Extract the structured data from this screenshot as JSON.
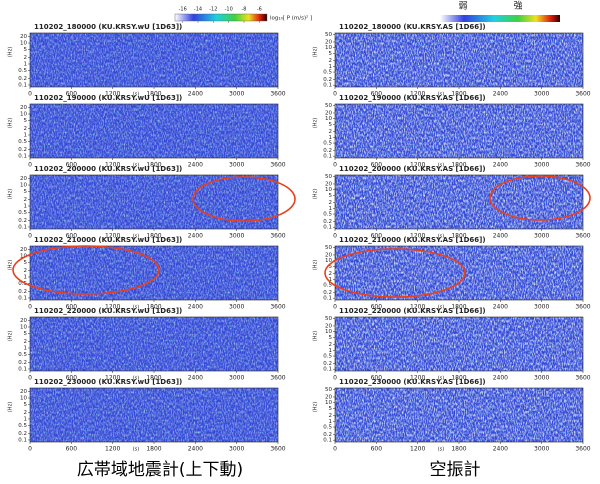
{
  "colorbar": {
    "label": "log₁₀[ P (m/s)² ]",
    "ticks": [
      -16,
      -14,
      -12,
      -10,
      -8,
      -6
    ],
    "lim": [
      -17,
      -5
    ]
  },
  "scale_labels": {
    "weak": "弱",
    "strong": "強"
  },
  "captions": [
    "広帯域地震計(上下動)",
    "空振計"
  ],
  "chart_data": [
    {
      "type": "spectrogram",
      "title": "110202_180000 (KU.KRSY.wU [1D63])",
      "x_label": "(s)",
      "y_label": "(Hz)",
      "xlim": [
        0,
        3600
      ],
      "xticks": [
        0,
        600,
        1200,
        1800,
        2400,
        3000,
        3600
      ],
      "ylim": [
        0.08,
        30
      ],
      "yticks": [
        20,
        10,
        5,
        2,
        1,
        0.5,
        0.2,
        0.1
      ],
      "log_y": true
    },
    {
      "type": "spectrogram",
      "title": "110202_190000 (KU.KRSY.wU [1D63])",
      "x_label": "(s)",
      "y_label": "(Hz)",
      "xlim": [
        0,
        3600
      ],
      "xticks": [
        0,
        600,
        1200,
        1800,
        2400,
        3000,
        3600
      ],
      "ylim": [
        0.08,
        30
      ],
      "yticks": [
        20,
        10,
        5,
        2,
        1,
        0.5,
        0.2,
        0.1
      ],
      "log_y": true
    },
    {
      "type": "spectrogram",
      "title": "110202_200000 (KU.KRSY.wU [1D63])",
      "x_label": "(s)",
      "y_label": "(Hz)",
      "xlim": [
        0,
        3600
      ],
      "xticks": [
        0,
        600,
        1200,
        1800,
        2400,
        3000,
        3600
      ],
      "ylim": [
        0.08,
        30
      ],
      "yticks": [
        20,
        10,
        5,
        2,
        1,
        0.5,
        0.2,
        0.1
      ],
      "log_y": true
    },
    {
      "type": "spectrogram",
      "title": "110202_210000 (KU.KRSY.wU [1D63])",
      "x_label": "(s)",
      "y_label": "(Hz)",
      "xlim": [
        0,
        3600
      ],
      "xticks": [
        0,
        600,
        1200,
        1800,
        2400,
        3000,
        3600
      ],
      "ylim": [
        0.08,
        30
      ],
      "yticks": [
        20,
        10,
        5,
        2,
        1,
        0.5,
        0.2,
        0.1
      ],
      "log_y": true
    },
    {
      "type": "spectrogram",
      "title": "110202_220000 (KU.KRSY.wU [1D63])",
      "x_label": "(s)",
      "y_label": "(Hz)",
      "xlim": [
        0,
        3600
      ],
      "xticks": [
        0,
        600,
        1200,
        1800,
        2400,
        3000,
        3600
      ],
      "ylim": [
        0.08,
        30
      ],
      "yticks": [
        20,
        10,
        5,
        2,
        1,
        0.5,
        0.2,
        0.1
      ],
      "log_y": true
    },
    {
      "type": "spectrogram",
      "title": "110202_230000 (KU.KRSY.wU [1D63])",
      "x_label": "(s)",
      "y_label": "(Hz)",
      "xlim": [
        0,
        3600
      ],
      "xticks": [
        0,
        600,
        1200,
        1800,
        2400,
        3000,
        3600
      ],
      "ylim": [
        0.08,
        30
      ],
      "yticks": [
        20,
        10,
        5,
        2,
        1,
        0.5,
        0.2,
        0.1
      ],
      "log_y": true
    },
    {
      "type": "spectrogram",
      "title": "110202_180000 (KU.KRSY.AS [1D66])",
      "x_label": "(s)",
      "y_label": "(Hz)",
      "xlim": [
        0,
        3600
      ],
      "xticks": [
        0,
        600,
        1200,
        1800,
        2400,
        3000,
        3600
      ],
      "ylim": [
        0.08,
        60
      ],
      "yticks": [
        50,
        20,
        10,
        5,
        2,
        1,
        0.5,
        0.2,
        0.1
      ],
      "log_y": true
    },
    {
      "type": "spectrogram",
      "title": "110202_190000 (KU.KRSY.AS [1D66])",
      "x_label": "(s)",
      "y_label": "(Hz)",
      "xlim": [
        0,
        3600
      ],
      "xticks": [
        0,
        600,
        1200,
        1800,
        2400,
        3000,
        3600
      ],
      "ylim": [
        0.08,
        60
      ],
      "yticks": [
        50,
        20,
        10,
        5,
        2,
        1,
        0.5,
        0.2,
        0.1
      ],
      "log_y": true
    },
    {
      "type": "spectrogram",
      "title": "110202_200000 (KU.KRSY.AS [1D66])",
      "x_label": "(s)",
      "y_label": "(Hz)",
      "xlim": [
        0,
        3600
      ],
      "xticks": [
        0,
        600,
        1200,
        1800,
        2400,
        3000,
        3600
      ],
      "ylim": [
        0.08,
        60
      ],
      "yticks": [
        50,
        20,
        10,
        5,
        2,
        1,
        0.5,
        0.2,
        0.1
      ],
      "log_y": true
    },
    {
      "type": "spectrogram",
      "title": "110202_210000 (KU.KRSY.AS [1D66])",
      "x_label": "(s)",
      "y_label": "(Hz)",
      "xlim": [
        0,
        3600
      ],
      "xticks": [
        0,
        600,
        1200,
        1800,
        2400,
        3000,
        3600
      ],
      "ylim": [
        0.08,
        60
      ],
      "yticks": [
        50,
        20,
        10,
        5,
        2,
        1,
        0.5,
        0.2,
        0.1
      ],
      "log_y": true
    },
    {
      "type": "spectrogram",
      "title": "110202_220000 (KU.KRSY.AS [1D66])",
      "x_label": "(s)",
      "y_label": "(Hz)",
      "xlim": [
        0,
        3600
      ],
      "xticks": [
        0,
        600,
        1200,
        1800,
        2400,
        3000,
        3600
      ],
      "ylim": [
        0.08,
        60
      ],
      "yticks": [
        50,
        20,
        10,
        5,
        2,
        1,
        0.5,
        0.2,
        0.1
      ],
      "log_y": true
    },
    {
      "type": "spectrogram",
      "title": "110202_230000 (KU.KRSY.AS [1D66])",
      "x_label": "(s)",
      "y_label": "(Hz)",
      "xlim": [
        0,
        3600
      ],
      "xticks": [
        0,
        600,
        1200,
        1800,
        2400,
        3000,
        3600
      ],
      "ylim": [
        0.08,
        60
      ],
      "yticks": [
        50,
        20,
        10,
        5,
        2,
        1,
        0.5,
        0.2,
        0.1
      ],
      "log_y": true
    }
  ]
}
